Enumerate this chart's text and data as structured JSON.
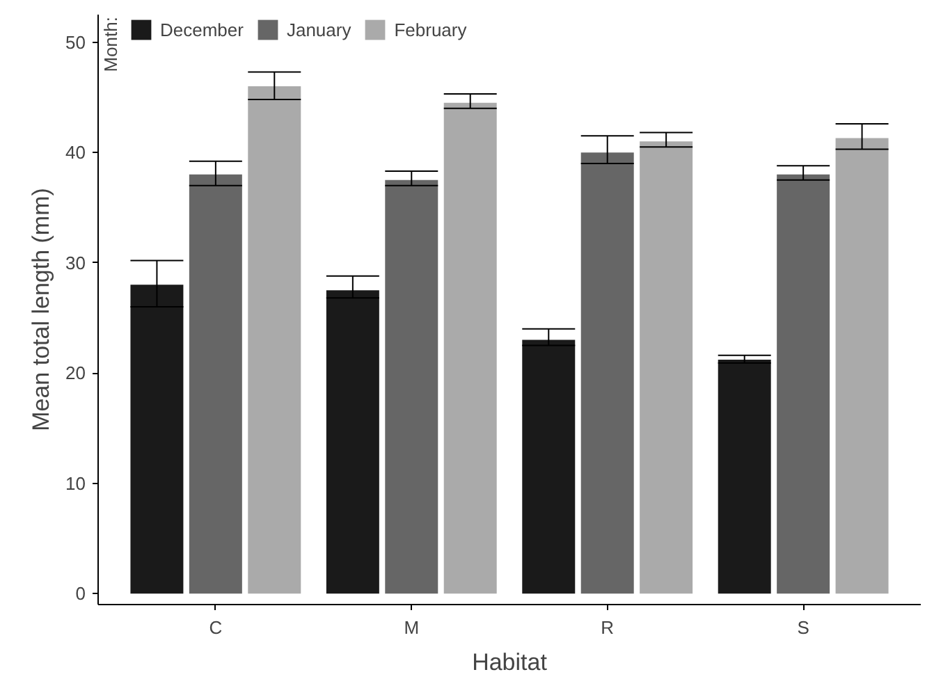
{
  "chart_data": {
    "type": "bar",
    "xlabel": "Habitat",
    "ylabel": "Mean total length (mm)",
    "legend_title": "Month:",
    "categories": [
      "C",
      "M",
      "R",
      "S"
    ],
    "series": [
      {
        "name": "December",
        "color": "#1a1a1a",
        "values": [
          28,
          27.5,
          23,
          21.2
        ],
        "errors": [
          [
            26,
            30.2
          ],
          [
            26.8,
            28.8
          ],
          [
            22.5,
            24
          ],
          [
            20.9,
            21.6
          ]
        ]
      },
      {
        "name": "January",
        "color": "#666666",
        "values": [
          38,
          37.5,
          40,
          38
        ],
        "errors": [
          [
            37,
            39.2
          ],
          [
            37,
            38.3
          ],
          [
            39,
            41.5
          ],
          [
            37.5,
            38.8
          ]
        ]
      },
      {
        "name": "February",
        "color": "#aaaaaa",
        "values": [
          46,
          44.5,
          41,
          41.3
        ],
        "errors": [
          [
            44.8,
            47.3
          ],
          [
            44,
            45.3
          ],
          [
            40.5,
            41.8
          ],
          [
            40.3,
            42.6
          ]
        ]
      }
    ],
    "ylim": [
      -1,
      52.5
    ],
    "yticks": [
      0,
      10,
      20,
      30,
      40,
      50
    ],
    "grid": false,
    "legend": "top left"
  }
}
